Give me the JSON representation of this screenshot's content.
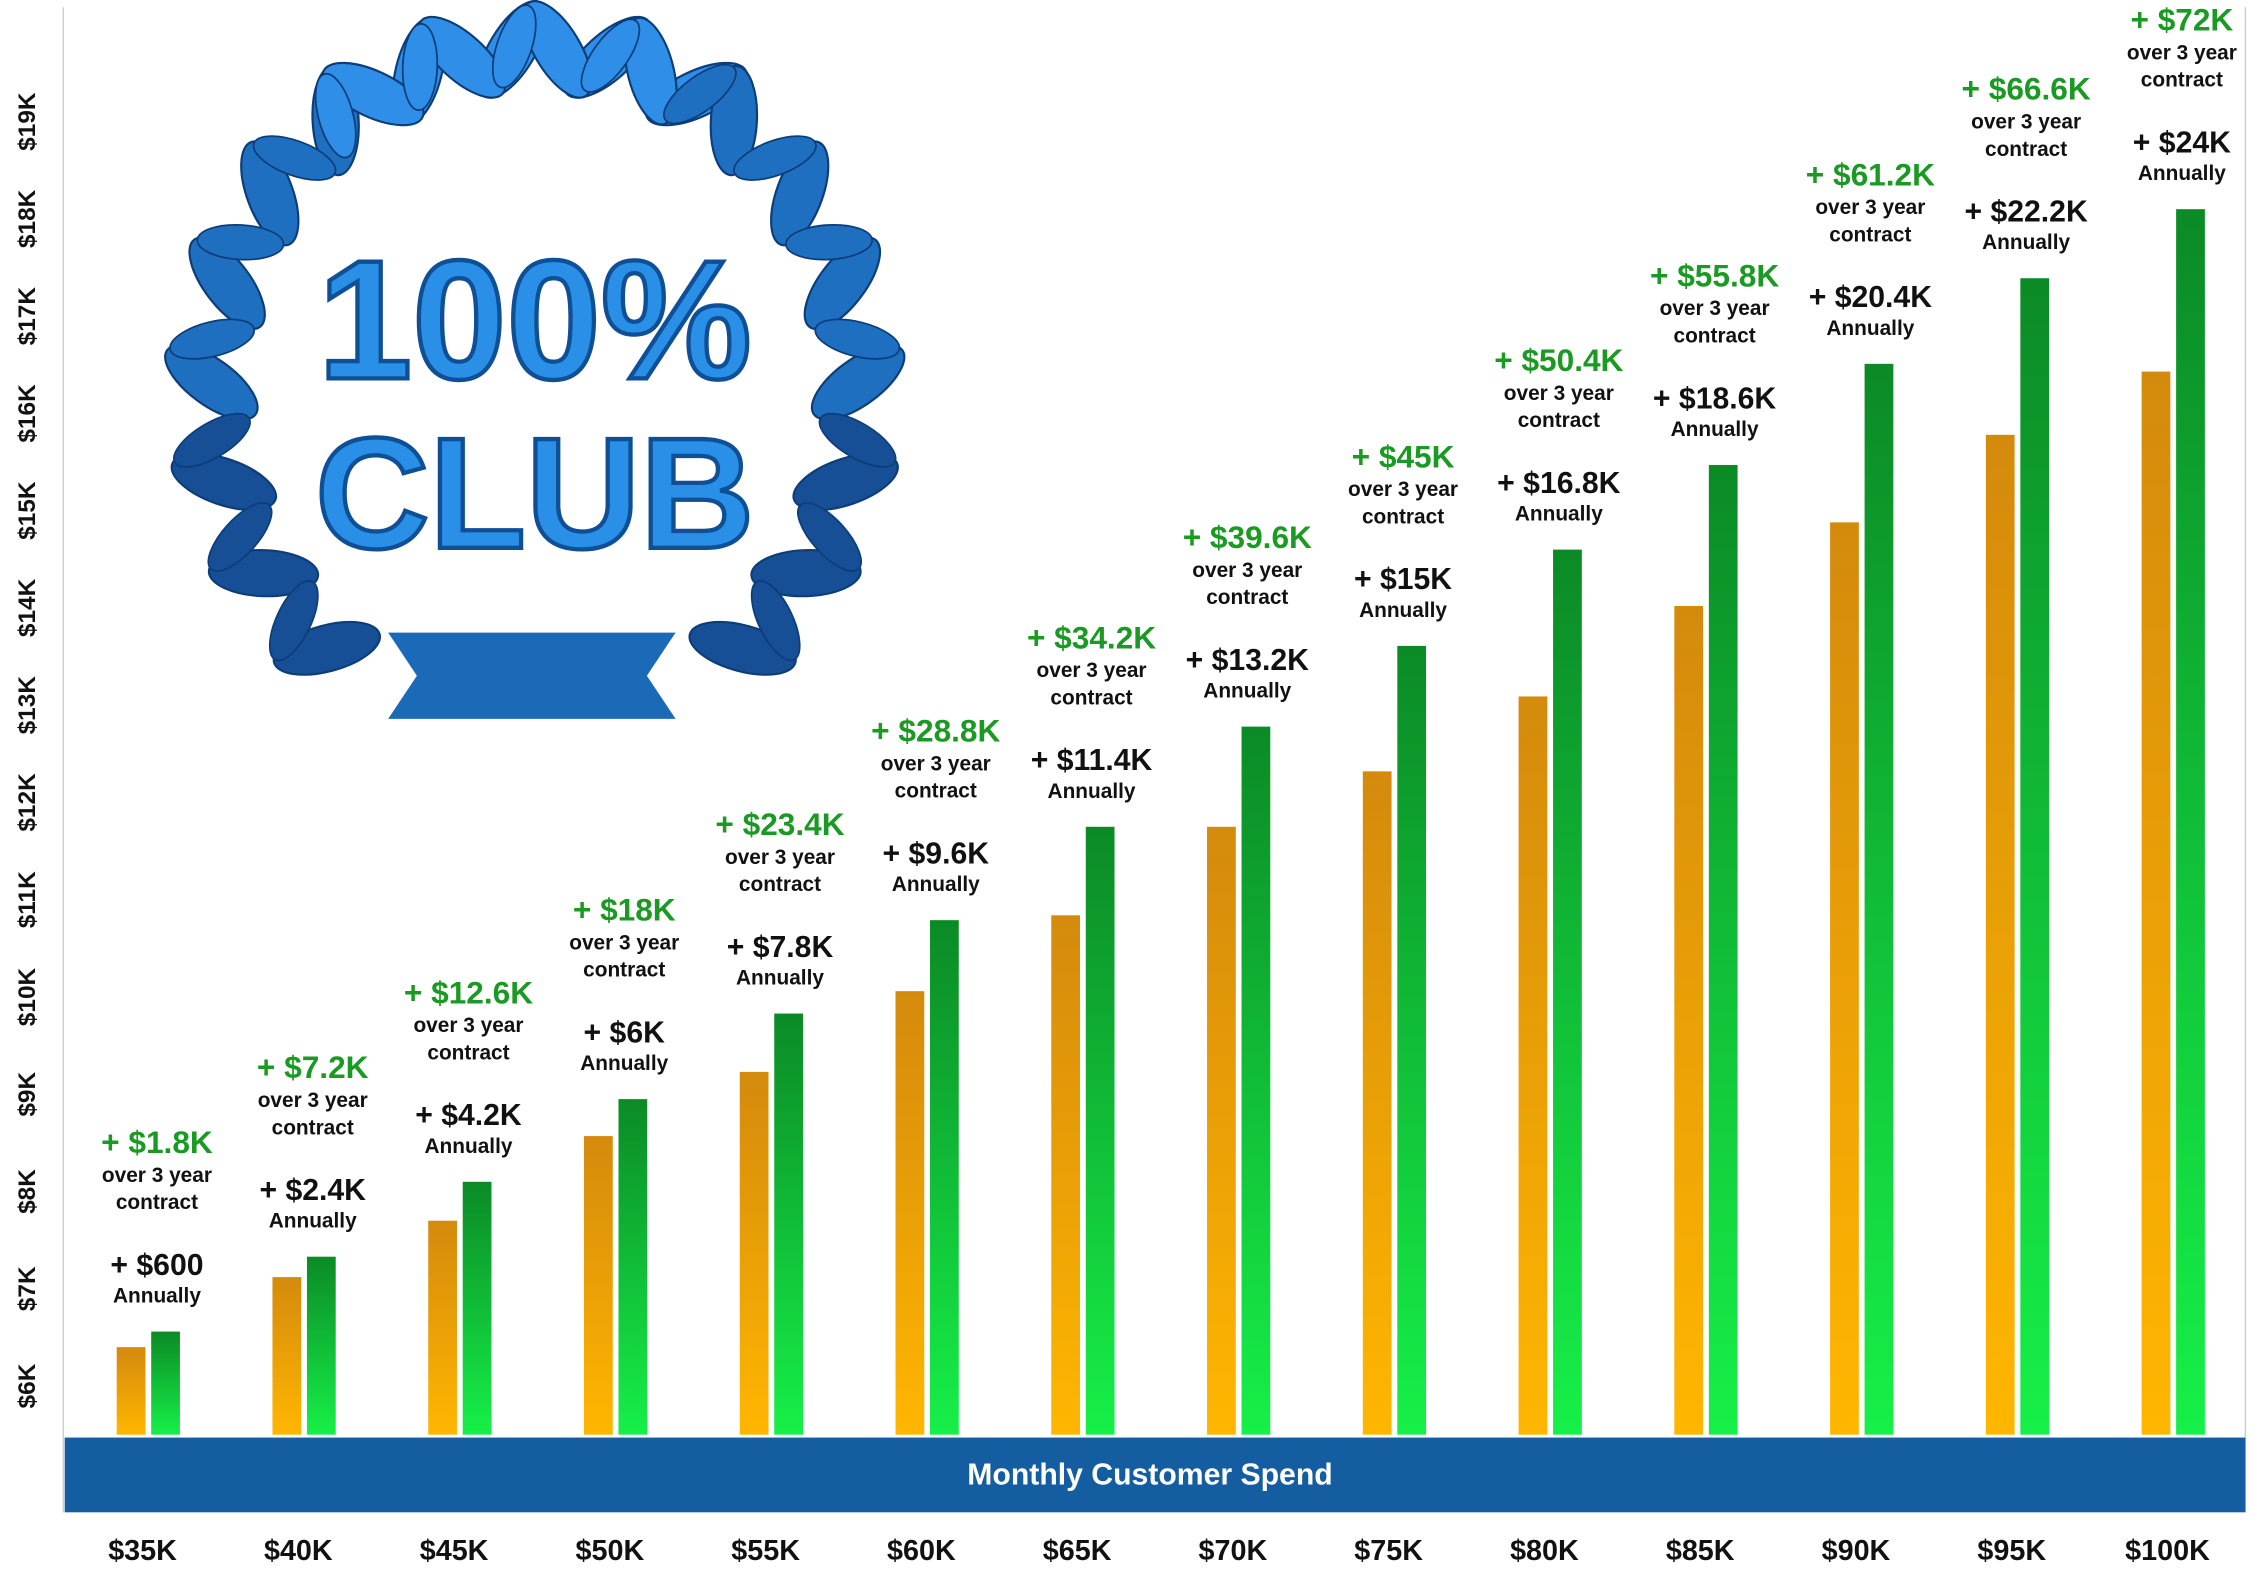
{
  "chart_data": {
    "type": "bar",
    "badge": {
      "line1": "100%",
      "line2": "CLUB"
    },
    "xlabel": "Monthly Customer Spend",
    "categories": [
      "$35K",
      "$40K",
      "$45K",
      "$50K",
      "$55K",
      "$60K",
      "$65K",
      "$70K",
      "$75K",
      "$80K",
      "$85K",
      "$90K",
      "$95K",
      "$100K"
    ],
    "series": [
      {
        "color": "#d48a0c",
        "color_bottom": "#ffb600",
        "values": [
          6.4,
          7.12,
          7.7,
          8.57,
          9.23,
          10.06,
          10.84,
          11.75,
          12.32,
          13.09,
          14.02,
          14.88,
          15.78,
          16.43
        ]
      },
      {
        "color": "#0b8a26",
        "color_bottom": "#16f048",
        "values": [
          6.56,
          7.33,
          8.1,
          8.95,
          9.83,
          10.79,
          11.75,
          12.78,
          13.61,
          14.6,
          15.47,
          16.51,
          17.39,
          18.1
        ]
      }
    ],
    "three_year_labels": [
      "+ $1.8K",
      "+ $7.2K",
      "+ $12.6K",
      "+ $18K",
      "+ $23.4K",
      "+ $28.8K",
      "+ $34.2K",
      "+ $39.6K",
      "+ $45K",
      "+ $50.4K",
      "+ $55.8K",
      "+ $61.2K",
      "+ $66.6K",
      "+ $72K"
    ],
    "three_year_note": [
      "over 3 year",
      "contract"
    ],
    "annual_labels": [
      "+ $600",
      "+ $2.4K",
      "+ $4.2K",
      "+ $6K",
      "+ $7.8K",
      "+ $9.6K",
      "+ $11.4K",
      "+ $13.2K",
      "+ $15K",
      "+ $16.8K",
      "+ $18.6K",
      "+ $20.4K",
      "+ $22.2K",
      "+ $24K"
    ],
    "annual_note": "Annually",
    "ylim": [
      5.5,
      20.25
    ],
    "yticks": [
      {
        "value": 6,
        "label": "$6K"
      },
      {
        "value": 7,
        "label": "$7K"
      },
      {
        "value": 8,
        "label": "$8K"
      },
      {
        "value": 9,
        "label": "$9K"
      },
      {
        "value": 10,
        "label": "$10K"
      },
      {
        "value": 11,
        "label": "$11K"
      },
      {
        "value": 12,
        "label": "$12K"
      },
      {
        "value": 13,
        "label": "$13K"
      },
      {
        "value": 14,
        "label": "$14K"
      },
      {
        "value": 15,
        "label": "$15K"
      },
      {
        "value": 16,
        "label": "$16K"
      },
      {
        "value": 17,
        "label": "$17K"
      },
      {
        "value": 18,
        "label": "$18K"
      },
      {
        "value": 19,
        "label": "$19K"
      }
    ],
    "grid": false
  }
}
